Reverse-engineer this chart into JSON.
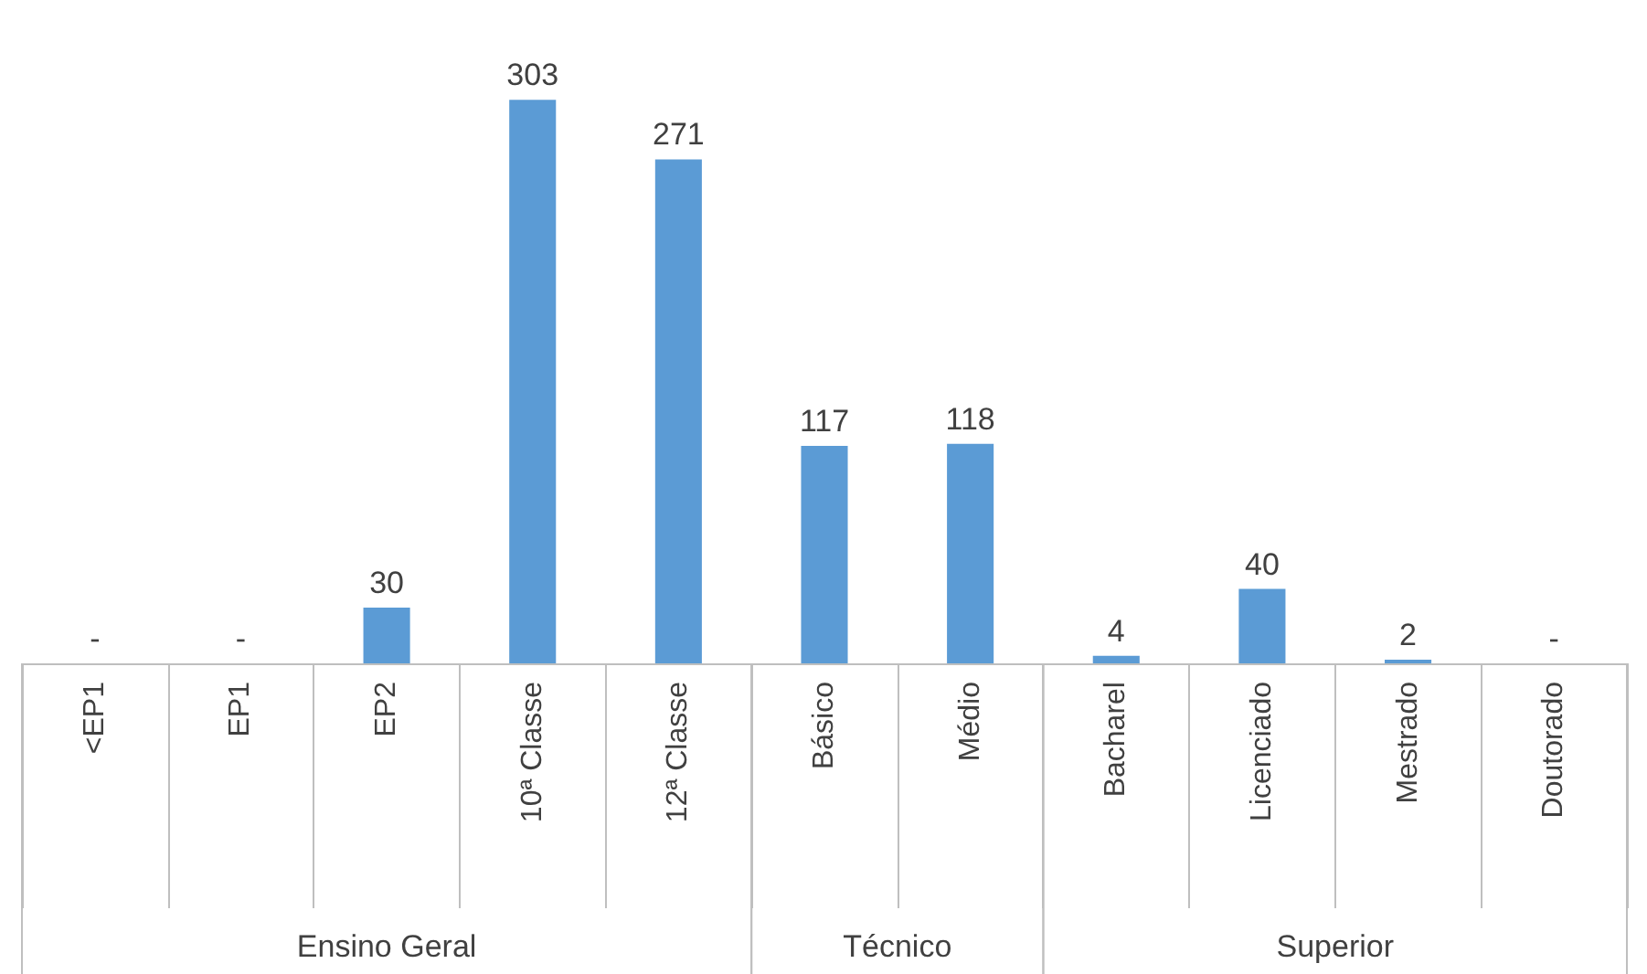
{
  "chart_data": {
    "type": "bar",
    "categories": [
      "<EP1",
      "EP1",
      "EP2",
      "10ª Classe",
      "12ª Classe",
      "Básico",
      "Médio",
      "Bacharel",
      "Licenciado",
      "Mestrado",
      "Doutorado"
    ],
    "values": [
      0,
      0,
      30,
      303,
      271,
      117,
      118,
      4,
      40,
      2,
      0
    ],
    "value_labels": [
      "-",
      "-",
      "30",
      "303",
      "271",
      "117",
      "118",
      "4",
      "40",
      "2",
      "-"
    ],
    "color": "#5b9bd5",
    "annotations": [
      "Ensino Geral",
      "Técnico",
      "Superior"
    ]
  }
}
